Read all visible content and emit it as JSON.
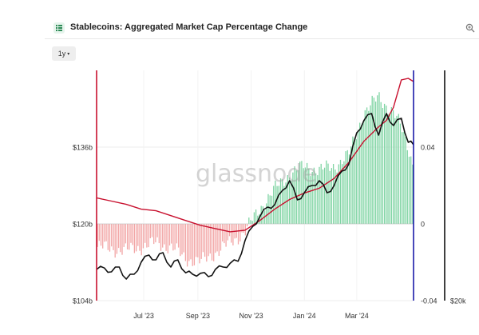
{
  "header": {
    "title": "Stablecoins: Aggregated Market Cap Percentage Change",
    "title_icon": "chart-sheet-icon",
    "zoom_icon": "zoom-in-icon"
  },
  "controls": {
    "range_label": "1y",
    "range_caret": "▾"
  },
  "watermark": "glassnode",
  "colors": {
    "price_line": "#c8102e",
    "market_cap_line": "#111111",
    "bar_positive": "#7fd4a3",
    "bar_negative": "#f2a5a5",
    "left_axis": "#c8102e",
    "right_axis": "#1a1aa8",
    "far_right_axis": "#111111"
  },
  "chart_data": {
    "type": "line",
    "title": "Stablecoins: Aggregated Market Cap Percentage Change",
    "x_tick_labels": [
      "Jul '23",
      "Sep '23",
      "Nov '23",
      "Jan '24",
      "Mar '24"
    ],
    "x_range": [
      "2023-05-08",
      "2024-05-05"
    ],
    "left_axis": {
      "ticks": [
        "$104b",
        "$120b",
        "$136b"
      ],
      "tick_values": [
        104,
        120,
        136
      ],
      "ylim": [
        104,
        152
      ],
      "unit": "billion USD"
    },
    "right_axis": {
      "ticks": [
        "-0.04",
        "0",
        "0.04"
      ],
      "tick_values": [
        -0.04,
        0,
        0.04
      ],
      "ylim": [
        -0.04,
        0.08
      ]
    },
    "far_right_axis": {
      "ticks": [
        "$20k"
      ],
      "tick_values": [
        20000
      ]
    },
    "series": [
      {
        "kind": "line",
        "axis": "left",
        "points": [
          [
            "2023-05-08",
            110.5
          ],
          [
            "2023-05-17",
            110.8
          ],
          [
            "2023-05-25",
            110.0
          ],
          [
            "2023-06-03",
            111.0
          ],
          [
            "2023-06-11",
            108.5
          ],
          [
            "2023-06-20",
            109.5
          ],
          [
            "2023-06-28",
            112.0
          ],
          [
            "2023-07-07",
            113.5
          ],
          [
            "2023-07-15",
            112.5
          ],
          [
            "2023-07-23",
            114.0
          ],
          [
            "2023-08-01",
            111.0
          ],
          [
            "2023-08-09",
            112.5
          ],
          [
            "2023-08-18",
            109.8
          ],
          [
            "2023-08-26",
            109.5
          ],
          [
            "2023-09-04",
            109.7
          ],
          [
            "2023-09-13",
            109.0
          ],
          [
            "2023-09-21",
            110.5
          ],
          [
            "2023-09-30",
            111.0
          ],
          [
            "2023-10-08",
            111.8
          ],
          [
            "2023-10-17",
            112.2
          ],
          [
            "2023-10-25",
            116.5
          ],
          [
            "2023-11-03",
            119.5
          ],
          [
            "2023-11-11",
            121.5
          ],
          [
            "2023-11-20",
            123.5
          ],
          [
            "2023-11-28",
            124.0
          ],
          [
            "2023-12-07",
            127.0
          ],
          [
            "2023-12-15",
            129.0
          ],
          [
            "2023-12-24",
            125.0
          ],
          [
            "2024-01-01",
            126.5
          ],
          [
            "2024-01-10",
            128.0
          ],
          [
            "2024-01-18",
            129.0
          ],
          [
            "2024-01-27",
            126.5
          ],
          [
            "2024-02-04",
            128.0
          ],
          [
            "2024-02-13",
            131.0
          ],
          [
            "2024-02-21",
            132.5
          ],
          [
            "2024-03-01",
            139.0
          ],
          [
            "2024-03-09",
            141.5
          ],
          [
            "2024-03-18",
            143.0
          ],
          [
            "2024-03-26",
            138.5
          ],
          [
            "2024-04-04",
            143.0
          ],
          [
            "2024-04-12",
            140.5
          ],
          [
            "2024-04-21",
            142.0
          ],
          [
            "2024-04-29",
            137.0
          ],
          [
            "2024-05-05",
            136.5
          ]
        ]
      },
      {
        "kind": "line",
        "axis": "far_right",
        "normalized": true,
        "points": [
          [
            "2023-05-08",
            0.26
          ],
          [
            "2023-05-25",
            0.24
          ],
          [
            "2023-06-11",
            0.22
          ],
          [
            "2023-06-28",
            0.19
          ],
          [
            "2023-07-15",
            0.18
          ],
          [
            "2023-08-01",
            0.15
          ],
          [
            "2023-08-18",
            0.12
          ],
          [
            "2023-09-04",
            0.09
          ],
          [
            "2023-09-21",
            0.07
          ],
          [
            "2023-10-08",
            0.05
          ],
          [
            "2023-10-25",
            0.06
          ],
          [
            "2023-11-11",
            0.12
          ],
          [
            "2023-11-28",
            0.19
          ],
          [
            "2023-12-15",
            0.25
          ],
          [
            "2024-01-01",
            0.29
          ],
          [
            "2024-01-18",
            0.32
          ],
          [
            "2024-02-04",
            0.38
          ],
          [
            "2024-02-21",
            0.48
          ],
          [
            "2024-03-09",
            0.61
          ],
          [
            "2024-03-26",
            0.7
          ],
          [
            "2024-04-04",
            0.74
          ],
          [
            "2024-04-12",
            0.82
          ],
          [
            "2024-04-21",
            0.99
          ],
          [
            "2024-04-29",
            1.0
          ],
          [
            "2024-05-05",
            0.98
          ]
        ]
      },
      {
        "kind": "bar",
        "axis": "right",
        "points": [
          [
            "2023-05-08",
            -0.012
          ],
          [
            "2023-05-25",
            -0.013
          ],
          [
            "2023-06-11",
            -0.014
          ],
          [
            "2023-06-28",
            -0.012
          ],
          [
            "2023-07-15",
            -0.01
          ],
          [
            "2023-08-01",
            -0.012
          ],
          [
            "2023-08-18",
            -0.018
          ],
          [
            "2023-09-04",
            -0.02
          ],
          [
            "2023-09-21",
            -0.015
          ],
          [
            "2023-10-08",
            -0.01
          ],
          [
            "2023-10-25",
            -0.004
          ],
          [
            "2023-11-11",
            0.008
          ],
          [
            "2023-11-28",
            0.018
          ],
          [
            "2023-12-15",
            0.026
          ],
          [
            "2024-01-01",
            0.03
          ],
          [
            "2024-01-18",
            0.028
          ],
          [
            "2024-02-04",
            0.03
          ],
          [
            "2024-02-21",
            0.036
          ],
          [
            "2024-03-09",
            0.058
          ],
          [
            "2024-03-26",
            0.066
          ],
          [
            "2024-04-12",
            0.058
          ],
          [
            "2024-04-21",
            0.05
          ],
          [
            "2024-04-29",
            0.04
          ],
          [
            "2024-05-05",
            0.03
          ]
        ]
      }
    ]
  }
}
